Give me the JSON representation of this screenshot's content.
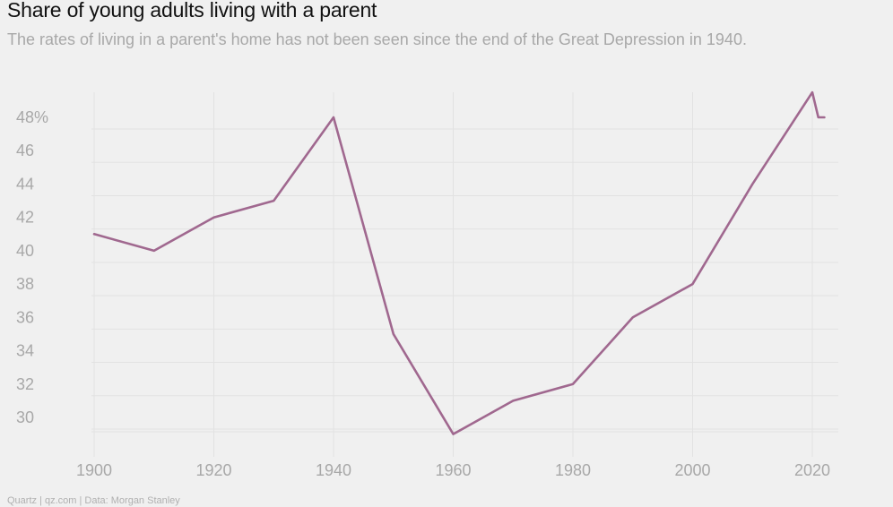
{
  "title": "Share of young adults living with a parent",
  "subtitle": "The rates of living in a parent's home has not been seen since the end of the Great Depression in 1940.",
  "footer": "Quartz | qz.com | Data: Morgan Stanley",
  "colors": {
    "line": "#a0688f",
    "grid": "#e2e2e2",
    "tick": "#a8a8a8",
    "background": "#f0f0f0"
  },
  "chart_data": {
    "type": "line",
    "title": "Share of young adults living with a parent",
    "subtitle": "The rates of living in a parent's home has not been seen since the end of the Great Depression in 1940.",
    "xlabel": "",
    "ylabel": "",
    "xlim": [
      1900,
      2022
    ],
    "ylim": [
      28,
      49
    ],
    "grid": true,
    "x_ticks": [
      1900,
      1920,
      1940,
      1960,
      1980,
      2000,
      2020
    ],
    "x_tick_labels": [
      "1900",
      "1920",
      "1940",
      "1960",
      "1980",
      "2000",
      "2020"
    ],
    "y_ticks": [
      30,
      32,
      34,
      36,
      38,
      40,
      42,
      44,
      46,
      48
    ],
    "y_tick_labels": [
      "30",
      "32",
      "34",
      "36",
      "38",
      "40",
      "42",
      "44",
      "46",
      "48%"
    ],
    "series": [
      {
        "x": [
          1900,
          1910,
          1920,
          1930,
          1940,
          1950,
          1960,
          1970,
          1980,
          1990,
          2000,
          2010,
          2020,
          2021,
          2022
        ],
        "y": [
          41,
          40,
          42,
          43,
          48,
          35,
          29,
          31,
          32,
          36,
          38,
          44,
          49.5,
          48,
          48
        ]
      }
    ]
  }
}
